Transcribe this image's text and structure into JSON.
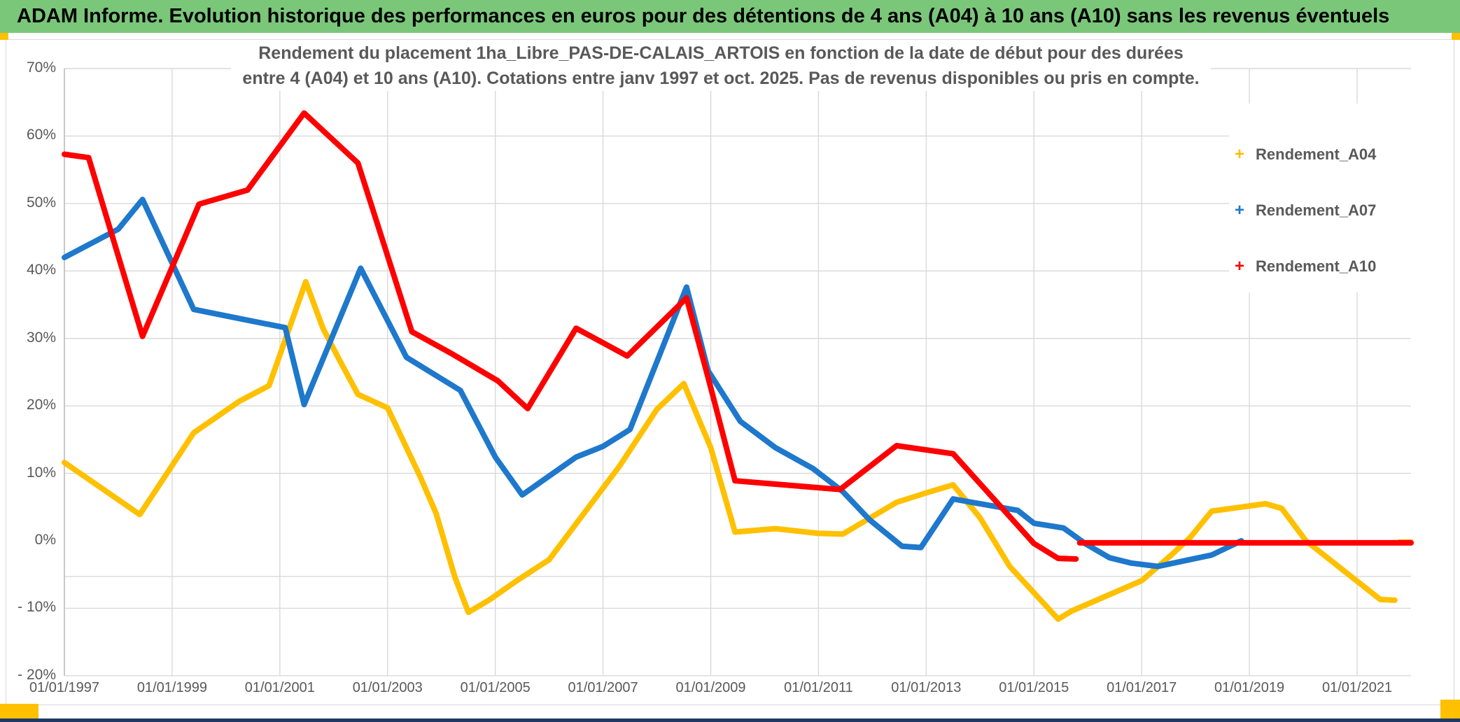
{
  "header": {
    "title": "ADAM Informe. Evolution historique des performances en euros pour des détentions de 4 ans (A04) à 10 ans (A10) sans les revenus éventuels"
  },
  "colors": {
    "header_bar": "#7AC77A",
    "header_text": "#000000",
    "title_text": "#595959",
    "axis_text": "#595959",
    "gridline": "#D9D9D9",
    "axis_line": "#BFBFBF",
    "frame_border": "#D9D9D9",
    "accent_gold": "#FFC000",
    "footer_navy": "#1F3864",
    "series_a04": "#FFC000",
    "series_a07": "#1E78CC",
    "series_a10": "#FF0000"
  },
  "chart_data": {
    "type": "line",
    "title_line1": "Rendement du placement 1ha_Libre_PAS-DE-CALAIS_ARTOIS en fonction de la date de début pour des durées",
    "title_line2": "entre 4 (A04) et 10 ans (A10). Cotations entre janv 1997 et oct. 2025. Pas de revenus disponibles ou pris en compte.",
    "grid": "on",
    "legend_position": "right",
    "x_axis": {
      "min": 1997.0,
      "max": 2022.0,
      "ticks": [
        {
          "label": "01/01/1997",
          "year": 1997
        },
        {
          "label": "01/01/1999",
          "year": 1999
        },
        {
          "label": "01/01/2001",
          "year": 2001
        },
        {
          "label": "01/01/2003",
          "year": 2003
        },
        {
          "label": "01/01/2005",
          "year": 2005
        },
        {
          "label": "01/01/2007",
          "year": 2007
        },
        {
          "label": "01/01/2009",
          "year": 2009
        },
        {
          "label": "01/01/2011",
          "year": 2011
        },
        {
          "label": "01/01/2013",
          "year": 2013
        },
        {
          "label": "01/01/2015",
          "year": 2015
        },
        {
          "label": "01/01/2017",
          "year": 2017
        },
        {
          "label": "01/01/2019",
          "year": 2019
        },
        {
          "label": "01/01/2021",
          "year": 2021
        }
      ]
    },
    "y_axis": {
      "min": -20,
      "max": 70,
      "unit": "%",
      "ticks": [
        {
          "label": "70%",
          "value": 70
        },
        {
          "label": "60%",
          "value": 60
        },
        {
          "label": "50%",
          "value": 50
        },
        {
          "label": "40%",
          "value": 40
        },
        {
          "label": "30%",
          "value": 30
        },
        {
          "label": "20%",
          "value": 20
        },
        {
          "label": "10%",
          "value": 10
        },
        {
          "label": "0%",
          "value": 0
        },
        {
          "label": "- 10%",
          "value": -10
        },
        {
          "label": "- 20%",
          "value": -20
        }
      ],
      "gridline_at_zero": false,
      "extra_gridline_value": -5.3
    },
    "legend": [
      {
        "label": "Rendement_A04",
        "color": "#FFC000",
        "marker": "+"
      },
      {
        "label": "Rendement_A07",
        "color": "#1E78CC",
        "marker": "+"
      },
      {
        "label": "Rendement_A10",
        "color": "#FF0000",
        "marker": "+"
      }
    ],
    "series": [
      {
        "name": "Rendement_A04",
        "color": "#FFC000",
        "marker": "+",
        "segments": [
          [
            [
              1997.0,
              11.6
            ],
            [
              1998.4,
              3.9
            ],
            [
              1999.4,
              16.0
            ],
            [
              2000.25,
              20.7
            ],
            [
              2000.8,
              23.0
            ],
            [
              2001.48,
              38.4
            ],
            [
              2001.8,
              31.5
            ],
            [
              2002.1,
              26.9
            ],
            [
              2002.45,
              21.7
            ],
            [
              2003.0,
              19.7
            ],
            [
              2003.6,
              9.6
            ],
            [
              2003.9,
              4.1
            ],
            [
              2004.25,
              -5.4
            ],
            [
              2004.5,
              -10.6
            ],
            [
              2004.9,
              -8.7
            ],
            [
              2005.4,
              -5.9
            ],
            [
              2006.0,
              -2.8
            ],
            [
              2006.45,
              2.0
            ],
            [
              2007.3,
              11.0
            ],
            [
              2008.0,
              19.5
            ],
            [
              2008.5,
              23.3
            ],
            [
              2009.0,
              13.8
            ],
            [
              2009.45,
              1.3
            ],
            [
              2010.2,
              1.8
            ],
            [
              2011.0,
              1.1
            ],
            [
              2011.45,
              1.0
            ],
            [
              2012.45,
              5.7
            ],
            [
              2013.0,
              7.1
            ],
            [
              2013.5,
              8.3
            ],
            [
              2014.0,
              3.4
            ],
            [
              2014.55,
              -3.8
            ],
            [
              2015.0,
              -7.7
            ],
            [
              2015.45,
              -11.6
            ],
            [
              2015.7,
              -10.4
            ],
            [
              2017.0,
              -5.9
            ],
            [
              2017.55,
              -2.1
            ],
            [
              2017.9,
              0.5
            ],
            [
              2018.3,
              4.4
            ],
            [
              2019.3,
              5.5
            ],
            [
              2019.6,
              4.8
            ],
            [
              2020.05,
              0.0
            ],
            [
              2021.43,
              -8.7
            ],
            [
              2021.7,
              -8.8
            ]
          ],
          [
            [
              2021.78,
              -0.2
            ],
            [
              2022.0,
              -0.2
            ]
          ]
        ]
      },
      {
        "name": "Rendement_A07",
        "color": "#1E78CC",
        "marker": "+",
        "segments": [
          [
            [
              1997.0,
              42.0
            ],
            [
              1998.0,
              46.2
            ],
            [
              1998.45,
              50.6
            ],
            [
              1999.4,
              34.3
            ],
            [
              2000.4,
              32.7
            ],
            [
              2001.1,
              31.6
            ],
            [
              2001.45,
              20.2
            ],
            [
              2002.5,
              40.4
            ],
            [
              2003.35,
              27.2
            ],
            [
              2004.35,
              22.3
            ],
            [
              2005.0,
              12.4
            ],
            [
              2005.5,
              6.8
            ],
            [
              2006.5,
              12.4
            ],
            [
              2007.0,
              14.0
            ],
            [
              2007.5,
              16.5
            ],
            [
              2008.55,
              37.6
            ],
            [
              2008.95,
              25.2
            ],
            [
              2009.55,
              17.7
            ],
            [
              2010.2,
              13.8
            ],
            [
              2010.9,
              10.7
            ],
            [
              2011.45,
              7.3
            ],
            [
              2011.95,
              3.1
            ],
            [
              2012.55,
              -0.8
            ],
            [
              2012.9,
              -1.0
            ],
            [
              2013.5,
              6.2
            ],
            [
              2014.7,
              4.5
            ],
            [
              2015.0,
              2.6
            ],
            [
              2015.55,
              1.9
            ],
            [
              2015.95,
              -0.4
            ],
            [
              2016.4,
              -2.5
            ],
            [
              2016.8,
              -3.3
            ],
            [
              2017.3,
              -3.8
            ],
            [
              2018.3,
              -2.1
            ],
            [
              2018.85,
              0.0
            ]
          ]
        ]
      },
      {
        "name": "Rendement_A10",
        "color": "#FF0000",
        "marker": "+",
        "segments": [
          [
            [
              1997.0,
              57.3
            ],
            [
              1997.45,
              56.8
            ],
            [
              1998.45,
              30.3
            ],
            [
              1999.5,
              49.9
            ],
            [
              2000.4,
              52.0
            ],
            [
              2001.45,
              63.4
            ],
            [
              2002.45,
              56.0
            ],
            [
              2003.45,
              31.0
            ],
            [
              2004.2,
              27.7
            ],
            [
              2005.05,
              23.7
            ],
            [
              2005.6,
              19.6
            ],
            [
              2006.5,
              31.5
            ],
            [
              2007.45,
              27.4
            ],
            [
              2008.55,
              36.0
            ],
            [
              2008.95,
              24.2
            ],
            [
              2009.45,
              8.9
            ],
            [
              2010.2,
              8.4
            ],
            [
              2011.4,
              7.6
            ],
            [
              2012.45,
              14.1
            ],
            [
              2013.5,
              12.9
            ],
            [
              2015.0,
              -0.4
            ],
            [
              2015.45,
              -2.6
            ],
            [
              2015.78,
              -2.7
            ]
          ],
          [
            [
              2015.85,
              -0.3
            ],
            [
              2022.0,
              -0.3
            ]
          ]
        ]
      }
    ]
  }
}
